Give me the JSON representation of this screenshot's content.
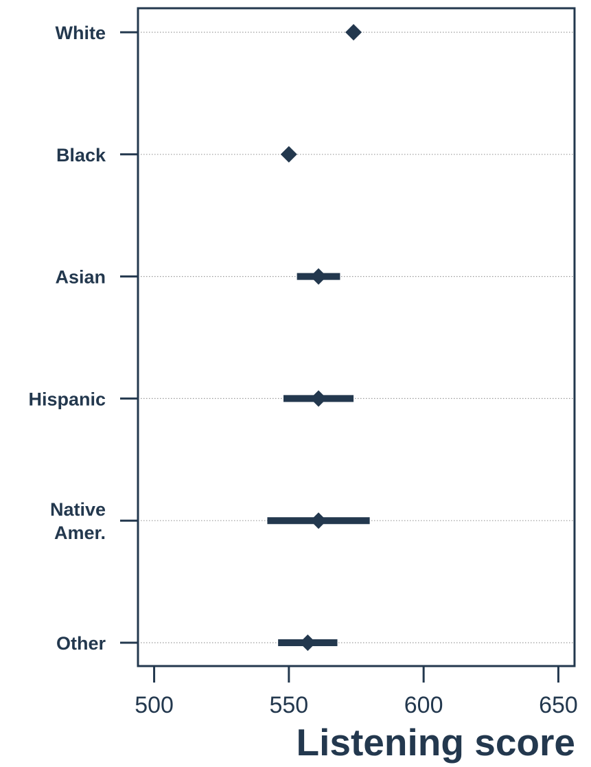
{
  "chart_data": {
    "type": "scatter",
    "title": "",
    "xlabel": "Listening score",
    "ylabel": "",
    "xlim": [
      494,
      656
    ],
    "x_ticks": [
      500,
      550,
      600,
      650
    ],
    "x_tick_labels": [
      "500",
      "550",
      "600",
      "650"
    ],
    "categories": [
      [
        "White"
      ],
      [
        "Black"
      ],
      [
        "Asian"
      ],
      [
        "Hispanic"
      ],
      [
        "Native",
        "Amer."
      ],
      [
        "Other"
      ]
    ],
    "points": [
      {
        "category": "White",
        "value": 574,
        "ci_low": null,
        "ci_high": null
      },
      {
        "category": "Black",
        "value": 550,
        "ci_low": null,
        "ci_high": null
      },
      {
        "category": "Asian",
        "value": 561,
        "ci_low": 553,
        "ci_high": 569
      },
      {
        "category": "Hispanic",
        "value": 561,
        "ci_low": 548,
        "ci_high": 574
      },
      {
        "category": "Native Amer.",
        "value": 561,
        "ci_low": 542,
        "ci_high": 580
      },
      {
        "category": "Other",
        "value": 557,
        "ci_low": 546,
        "ci_high": 568
      }
    ],
    "grid": true,
    "legend": "none",
    "colors": {
      "marker": "#23384e",
      "axis": "#23384e",
      "grid": "#9a9a9a"
    }
  }
}
